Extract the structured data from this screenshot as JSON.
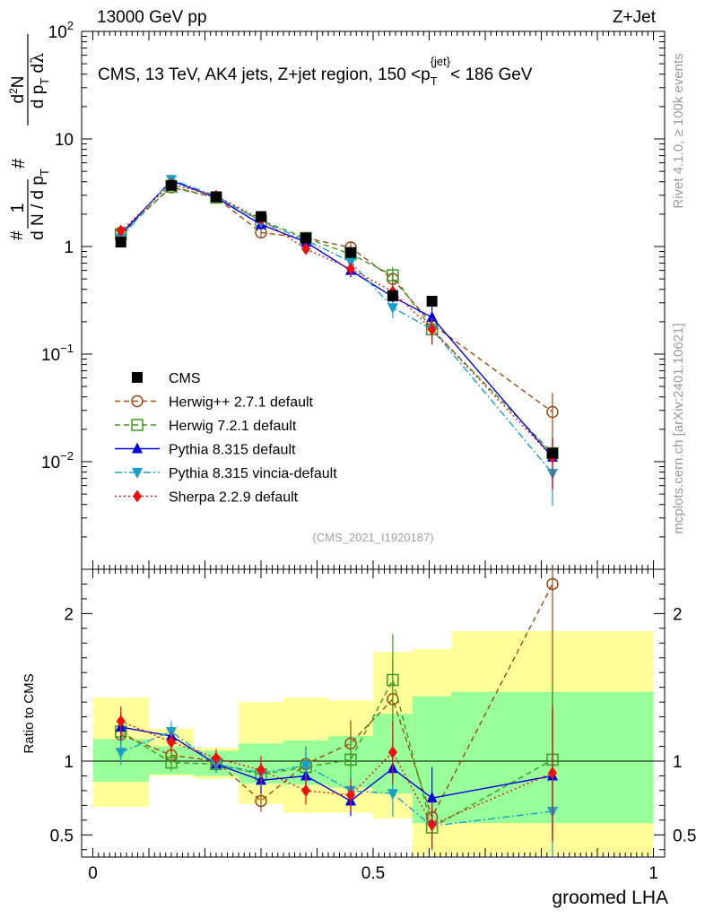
{
  "header": {
    "left": "13000 GeV pp",
    "right": "Z+Jet"
  },
  "side_labels": {
    "rivet": "Rivet 4.1.0, ≥ 100k events",
    "source": "mcplots.cern.ch [arXiv:2401.10621]"
  },
  "chart_data": {
    "type": "line",
    "title": "CMS, 13 TeV, AK4 jets, Z+jet region, 150 <p_T^{jet}< 186 GeV",
    "title_parts": {
      "main": "CMS, 13 TeV, AK4 jets, Z+jet region, 150 <p",
      "sub": "T",
      "sup": "{jet}",
      "end": "< 186 GeV"
    },
    "analysis_tag": "(CMS_2021_I1920187)",
    "xlabel": "groomed LHA",
    "ylabel_top": "1/N dN/dp_T d²N/dp_T dλ",
    "ylabel_ratio": "Ratio to CMS",
    "xlim": [
      -0.02,
      1.02
    ],
    "ylim_main": [
      0.001,
      100
    ],
    "ylog": true,
    "ylim_ratio": [
      0.35,
      2.3
    ],
    "x_ticks": [
      0,
      0.5,
      1
    ],
    "x_tick_labels": [
      "0",
      "0.5",
      "1"
    ],
    "y_ticks_main": [
      0.01,
      0.1,
      1,
      10,
      100
    ],
    "y_tick_labels_main": [
      {
        "base": "10",
        "exp": "−2"
      },
      {
        "base": "10",
        "exp": "−1"
      },
      {
        "base": "1",
        "exp": ""
      },
      {
        "base": "10",
        "exp": ""
      },
      {
        "base": "10",
        "exp": "2"
      }
    ],
    "y_ticks_ratio": [
      0.5,
      1,
      2
    ],
    "y_tick_labels_ratio": [
      "0.5",
      "1",
      "2"
    ],
    "bin_edges": [
      0,
      0.1,
      0.18,
      0.26,
      0.34,
      0.42,
      0.5,
      0.57,
      0.64,
      1.0
    ],
    "x": [
      0.05,
      0.14,
      0.22,
      0.3,
      0.38,
      0.46,
      0.535,
      0.605,
      0.82
    ],
    "data_values": [
      1.1,
      3.7,
      2.9,
      1.9,
      1.2,
      0.88,
      0.35,
      0.31,
      0.012
    ],
    "band_inner": [
      [
        0.86,
        1.15
      ],
      [
        0.91,
        1.1
      ],
      [
        0.9,
        1.07
      ],
      [
        0.85,
        1.12
      ],
      [
        0.84,
        1.14
      ],
      [
        0.82,
        1.17
      ],
      [
        0.78,
        1.32
      ],
      [
        0.58,
        1.44
      ],
      [
        0.58,
        1.47
      ]
    ],
    "band_outer": [
      [
        0.69,
        1.43
      ],
      [
        0.9,
        1.22
      ],
      [
        0.88,
        1.09
      ],
      [
        0.71,
        1.4
      ],
      [
        0.65,
        1.43
      ],
      [
        0.65,
        1.41
      ],
      [
        0.61,
        1.74
      ],
      [
        0.36,
        1.76
      ],
      [
        0.36,
        1.88
      ]
    ],
    "series": [
      {
        "name": "Herwig++ 2.7.1 default",
        "color": "#9c4a12",
        "dash": "6,4",
        "marker": "circle-open",
        "values": [
          1.35,
          3.55,
          2.85,
          1.35,
          1.2,
          0.98,
          0.5,
          0.19,
          0.029
        ],
        "ratio": [
          1.18,
          1.04,
          1.0,
          0.73,
          0.98,
          1.12,
          1.42,
          0.62,
          2.2
        ]
      },
      {
        "name": "Herwig 7.2.1 default",
        "color": "#3c9a1e",
        "dash": "6,4",
        "marker": "square-open",
        "values": [
          1.3,
          3.6,
          2.85,
          1.75,
          1.2,
          0.85,
          0.54,
          0.17,
          0.012
        ],
        "ratio": [
          1.2,
          0.99,
          0.98,
          0.91,
          0.96,
          1.01,
          1.55,
          0.55,
          1.01
        ]
      },
      {
        "name": "Pythia 8.315 default",
        "color": "#0000e0",
        "dash": "",
        "marker": "triangle-up",
        "values": [
          1.3,
          4.1,
          2.85,
          1.6,
          1.1,
          0.6,
          0.34,
          0.22,
          0.011
        ],
        "ratio": [
          1.23,
          1.17,
          0.98,
          0.87,
          0.9,
          0.73,
          0.95,
          0.75,
          0.9
        ]
      },
      {
        "name": "Pythia 8.315 vincia-default",
        "color": "#1aa0c8",
        "dash": "8,3,2,3",
        "marker": "triangle-down",
        "values": [
          1.2,
          4.2,
          2.95,
          1.7,
          1.15,
          0.72,
          0.27,
          0.17,
          0.0078
        ],
        "ratio": [
          1.06,
          1.2,
          0.98,
          0.92,
          0.97,
          0.8,
          0.78,
          0.56,
          0.66
        ]
      },
      {
        "name": "Sherpa 2.2.9 default",
        "color": "#ee1010",
        "dash": "2,3",
        "marker": "diamond",
        "values": [
          1.4,
          3.8,
          2.95,
          1.8,
          0.95,
          0.62,
          0.38,
          0.17,
          0.011
        ],
        "ratio": [
          1.27,
          1.13,
          1.02,
          0.94,
          0.8,
          0.77,
          1.06,
          0.57,
          0.92
        ]
      }
    ],
    "data_legend": "CMS",
    "legend_position": "center-left"
  }
}
